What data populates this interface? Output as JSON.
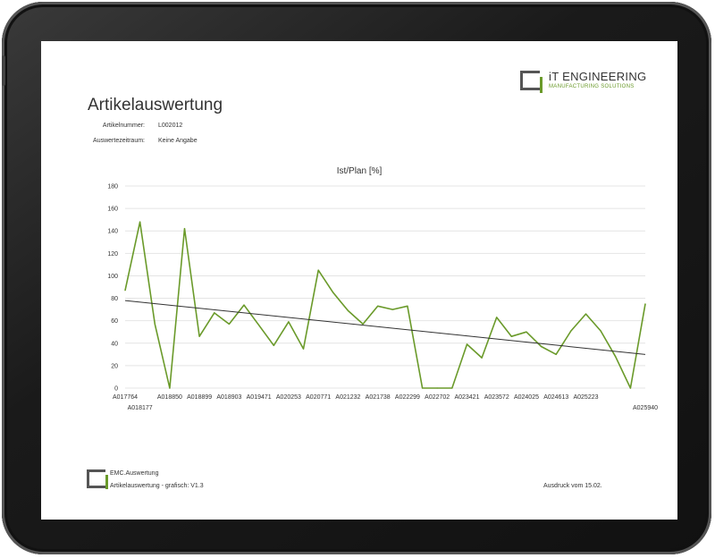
{
  "logo": {
    "title": "iT ENGINEERING",
    "subtitle": "MANUFACTURING SOLUTIONS"
  },
  "report": {
    "title": "Artikelauswertung",
    "fields": [
      {
        "label": "Artikelnummer:",
        "value": "L002012"
      },
      {
        "label": "Auswertezeitraum:",
        "value": "Keine Angabe"
      }
    ]
  },
  "footer": {
    "app_name": "EMC.Auswertung",
    "version_text": "Artikelauswertung - grafisch: V1.3",
    "print_text": "Ausdruck vom 15.02."
  },
  "colors": {
    "series": "#6a9a2a",
    "trend": "#333333",
    "grid": "#e4e4e4"
  },
  "chart_data": {
    "type": "line",
    "title": "Ist/Plan [%]",
    "ylim": [
      0,
      180
    ],
    "yticks": [
      0,
      20,
      40,
      60,
      80,
      100,
      120,
      140,
      160,
      180
    ],
    "grid": true,
    "x_tick_labels": [
      {
        "label": "A017764",
        "index": 0,
        "row": 1
      },
      {
        "label": "A018177",
        "index": 1,
        "row": 2
      },
      {
        "label": "A018850",
        "index": 3,
        "row": 1
      },
      {
        "label": "A018899",
        "index": 5,
        "row": 1
      },
      {
        "label": "A018903",
        "index": 7,
        "row": 1
      },
      {
        "label": "A019471",
        "index": 9,
        "row": 1
      },
      {
        "label": "A020253",
        "index": 11,
        "row": 1
      },
      {
        "label": "A020771",
        "index": 13,
        "row": 1
      },
      {
        "label": "A021232",
        "index": 15,
        "row": 1
      },
      {
        "label": "A021738",
        "index": 17,
        "row": 1
      },
      {
        "label": "A022299",
        "index": 19,
        "row": 1
      },
      {
        "label": "A022702",
        "index": 21,
        "row": 1
      },
      {
        "label": "A023421",
        "index": 23,
        "row": 1
      },
      {
        "label": "A023572",
        "index": 25,
        "row": 1
      },
      {
        "label": "A024025",
        "index": 27,
        "row": 1
      },
      {
        "label": "A024613",
        "index": 29,
        "row": 1
      },
      {
        "label": "A025223",
        "index": 31,
        "row": 1
      },
      {
        "label": "A025940",
        "index": 35,
        "row": 2
      }
    ],
    "series": [
      {
        "values": [
          87,
          148,
          57,
          0,
          142,
          46,
          67,
          57,
          74,
          56,
          38,
          59,
          35,
          105,
          85,
          69,
          57,
          73,
          70,
          73,
          0,
          0,
          0,
          39,
          27,
          63,
          46,
          50,
          37,
          30,
          51,
          66,
          51,
          28,
          0,
          75
        ]
      }
    ],
    "trendline": {
      "start": 78,
      "end": 30
    }
  }
}
